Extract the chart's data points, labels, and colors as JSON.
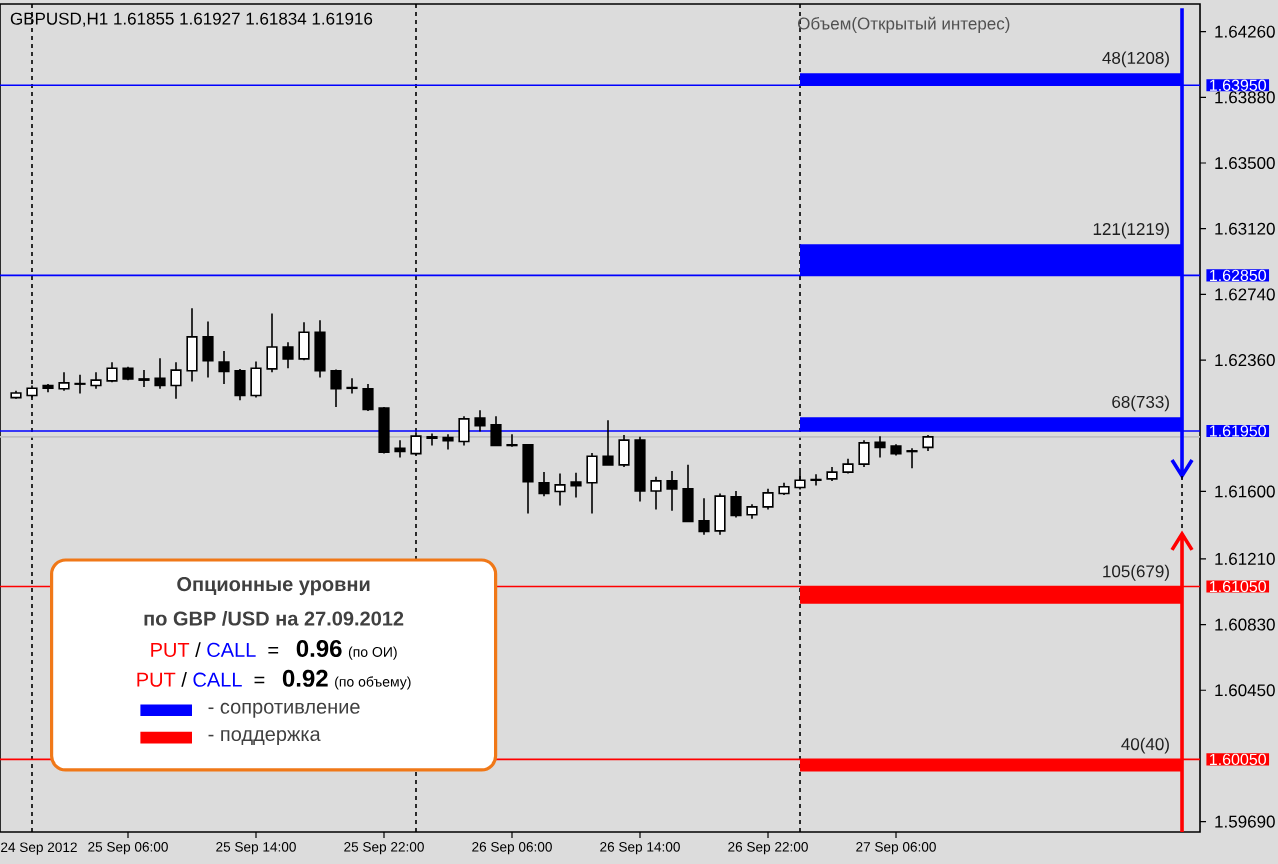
{
  "chart_data": {
    "type": "candlestick",
    "title": "GBPUSD,H1  1.61855 1.61927 1.61834 1.61916",
    "color": "#000000",
    "x": [
      "2012-09-24T23:00",
      "2012-09-25T00:00",
      "2012-09-25T01:00",
      "2012-09-25T02:00",
      "2012-09-25T03:00",
      "2012-09-25T04:00",
      "2012-09-25T05:00",
      "2012-09-25T06:00",
      "2012-09-25T07:00",
      "2012-09-25T08:00",
      "2012-09-25T09:00",
      "2012-09-25T10:00",
      "2012-09-25T11:00",
      "2012-09-25T12:00",
      "2012-09-25T13:00",
      "2012-09-25T14:00",
      "2012-09-25T15:00",
      "2012-09-25T16:00",
      "2012-09-25T17:00",
      "2012-09-25T18:00",
      "2012-09-25T19:00",
      "2012-09-25T20:00",
      "2012-09-25T21:00",
      "2012-09-25T22:00",
      "2012-09-25T23:00",
      "2012-09-26T00:00",
      "2012-09-26T01:00",
      "2012-09-26T02:00",
      "2012-09-26T03:00",
      "2012-09-26T04:00",
      "2012-09-26T05:00",
      "2012-09-26T06:00",
      "2012-09-26T07:00",
      "2012-09-26T08:00",
      "2012-09-26T09:00",
      "2012-09-26T10:00",
      "2012-09-26T11:00",
      "2012-09-26T12:00",
      "2012-09-26T13:00",
      "2012-09-26T14:00",
      "2012-09-26T15:00",
      "2012-09-26T16:00",
      "2012-09-26T17:00",
      "2012-09-26T18:00",
      "2012-09-26T19:00",
      "2012-09-26T20:00",
      "2012-09-26T21:00",
      "2012-09-26T22:00",
      "2012-09-26T23:00",
      "2012-09-27T00:00",
      "2012-09-27T01:00",
      "2012-09-27T02:00",
      "2012-09-27T03:00",
      "2012-09-27T04:00",
      "2012-09-27T05:00",
      "2012-09-27T06:00",
      "2012-09-27T07:00",
      "2012-09-27T08:00"
    ],
    "ohlc": [
      [
        1.62143,
        1.62182,
        1.62136,
        1.6217
      ],
      [
        1.62155,
        1.62213,
        1.62143,
        1.62197
      ],
      [
        1.62213,
        1.62221,
        1.62174,
        1.62197
      ],
      [
        1.62194,
        1.6229,
        1.62182,
        1.62228
      ],
      [
        1.62221,
        1.62275,
        1.62167,
        1.62224
      ],
      [
        1.62213,
        1.6229,
        1.62194,
        1.62244
      ],
      [
        1.6224,
        1.62348,
        1.62232,
        1.62313
      ],
      [
        1.62313,
        1.62321,
        1.62244,
        1.62251
      ],
      [
        1.62251,
        1.62302,
        1.62205,
        1.62244
      ],
      [
        1.62255,
        1.62371,
        1.62194,
        1.62213
      ],
      [
        1.62213,
        1.62348,
        1.62136,
        1.62302
      ],
      [
        1.62298,
        1.6266,
        1.62236,
        1.62494
      ],
      [
        1.62494,
        1.62583,
        1.62259,
        1.62356
      ],
      [
        1.62348,
        1.62413,
        1.62221,
        1.62294
      ],
      [
        1.62298,
        1.62309,
        1.62128,
        1.62155
      ],
      [
        1.62155,
        1.62352,
        1.62143,
        1.62313
      ],
      [
        1.62309,
        1.62629,
        1.6229,
        1.62436
      ],
      [
        1.62436,
        1.62463,
        1.62313,
        1.62367
      ],
      [
        1.62367,
        1.62579,
        1.62359,
        1.62521
      ],
      [
        1.62521,
        1.62591,
        1.62259,
        1.62298
      ],
      [
        1.62298,
        1.62305,
        1.62089,
        1.62194
      ],
      [
        1.62201,
        1.62255,
        1.62167,
        1.62197
      ],
      [
        1.62194,
        1.62221,
        1.62066,
        1.62074
      ],
      [
        1.62082,
        1.62089,
        1.61819,
        1.61827
      ],
      [
        1.6185,
        1.61897,
        1.61796,
        1.61831
      ],
      [
        1.61819,
        1.61943,
        1.61812,
        1.6192
      ],
      [
        1.61916,
        1.61935,
        1.61866,
        1.61908
      ],
      [
        1.61912,
        1.61931,
        1.61843,
        1.61893
      ],
      [
        1.61889,
        1.62035,
        1.61866,
        1.6202
      ],
      [
        1.62024,
        1.6207,
        1.61947,
        1.61981
      ],
      [
        1.61985,
        1.62035,
        1.61866,
        1.61866
      ],
      [
        1.6187,
        1.61931,
        1.61858,
        1.61866
      ],
      [
        1.6187,
        1.61873,
        1.61472,
        1.61657
      ],
      [
        1.6165,
        1.61712,
        1.61573,
        1.61588
      ],
      [
        1.616,
        1.61704,
        1.61519,
        1.61638
      ],
      [
        1.61654,
        1.61708,
        1.61565,
        1.61634
      ],
      [
        1.6165,
        1.61823,
        1.61472,
        1.61804
      ],
      [
        1.61804,
        1.62012,
        1.61754,
        1.61754
      ],
      [
        1.61754,
        1.61927,
        1.61742,
        1.61897
      ],
      [
        1.61897,
        1.61916,
        1.61542,
        1.61603
      ],
      [
        1.61603,
        1.61685,
        1.61496,
        1.61661
      ],
      [
        1.61661,
        1.61719,
        1.61488,
        1.61615
      ],
      [
        1.61615,
        1.61754,
        1.61426,
        1.61426
      ],
      [
        1.6143,
        1.61561,
        1.61349,
        1.61368
      ],
      [
        1.61372,
        1.61588,
        1.61349,
        1.61573
      ],
      [
        1.61569,
        1.61603,
        1.61449,
        1.61461
      ],
      [
        1.61465,
        1.61526,
        1.61442,
        1.61511
      ],
      [
        1.61511,
        1.61615,
        1.61496,
        1.61592
      ],
      [
        1.61588,
        1.6165,
        1.6158,
        1.61627
      ],
      [
        1.61623,
        1.61712,
        1.61611,
        1.61665
      ],
      [
        1.61665,
        1.617,
        1.61634,
        1.61669
      ],
      [
        1.61673,
        1.61742,
        1.61661,
        1.61712
      ],
      [
        1.61712,
        1.61789,
        1.61704,
        1.61758
      ],
      [
        1.61758,
        1.61897,
        1.61742,
        1.61881
      ],
      [
        1.61885,
        1.6192,
        1.61796,
        1.61854
      ],
      [
        1.61862,
        1.61873,
        1.61808,
        1.61819
      ],
      [
        1.61835,
        1.6185,
        1.61735,
        1.61831
      ],
      [
        1.61855,
        1.61927,
        1.61834,
        1.61916
      ]
    ],
    "xlim": [
      "2012-09-24T22:00",
      "2012-09-28T01:00"
    ],
    "xticks": [
      {
        "value": "2012-09-25T06:00",
        "label": "25 Sep 06:00"
      },
      {
        "value": "2012-09-25T14:00",
        "label": "25 Sep 14:00"
      },
      {
        "value": "2012-09-25T22:00",
        "label": "25 Sep 22:00"
      },
      {
        "value": "2012-09-26T06:00",
        "label": "26 Sep 06:00"
      },
      {
        "value": "2012-09-26T14:00",
        "label": "26 Sep 14:00"
      },
      {
        "value": "2012-09-26T22:00",
        "label": "26 Sep 22:00"
      },
      {
        "value": "2012-09-27T06:00",
        "label": "27 Sep 06:00"
      }
    ],
    "ylim": [
      1.5963,
      1.6442
    ],
    "yticks": [
      {
        "value": 1.6426,
        "label": "1.64260"
      },
      {
        "value": 1.6388,
        "label": "1.63880"
      },
      {
        "value": 1.635,
        "label": "1.63500"
      },
      {
        "value": 1.6312,
        "label": "1.63120"
      },
      {
        "value": 1.6274,
        "label": "1.62740"
      },
      {
        "value": 1.6236,
        "label": "1.62360"
      },
      {
        "value": 1.616,
        "label": "1.61600"
      },
      {
        "value": 1.6121,
        "label": "1.61210"
      },
      {
        "value": 1.6083,
        "label": "1.60830"
      },
      {
        "value": 1.6045,
        "label": "1.60450"
      },
      {
        "value": 1.5969,
        "label": "1.59690"
      }
    ],
    "grid": false,
    "ref_lines": [
      {
        "axis": "x",
        "value": "2012-09-25T00:00",
        "color": "#000000",
        "line_style": "dashed"
      },
      {
        "axis": "x",
        "value": "2012-09-26T00:00",
        "color": "#000000",
        "line_style": "dashed"
      },
      {
        "axis": "x",
        "value": "2012-09-27T00:00",
        "color": "#000000",
        "line_style": "dashed"
      },
      {
        "axis": "y",
        "value": 1.61916,
        "color": "#c0c0c0"
      },
      {
        "axis": "y",
        "value": 1.6395,
        "label": "1.63950",
        "color": "#0000ff"
      },
      {
        "axis": "y",
        "value": 1.6285,
        "label": "1.62850",
        "color": "#0000ff"
      },
      {
        "axis": "y",
        "value": 1.6195,
        "label": "1.61950",
        "color": "#0000ff"
      },
      {
        "axis": "y",
        "value": 1.6105,
        "label": "1.61050",
        "color": "#ff0000"
      },
      {
        "axis": "y",
        "value": 1.6005,
        "label": "1.60050",
        "color": "#ff0000"
      }
    ],
    "bands": [
      {
        "axis": "y",
        "from": 1.6395,
        "to": 1.6402,
        "label": "48(1208)",
        "color": "#0000ff"
      },
      {
        "axis": "y",
        "from": 1.6285,
        "to": 1.6303,
        "label": "121(1219)",
        "color": "#0000ff"
      },
      {
        "axis": "y",
        "from": 1.6195,
        "to": 1.6203,
        "label": "68(733)",
        "color": "#0000ff"
      },
      {
        "axis": "y",
        "from": 1.6105,
        "to": 1.6095,
        "label": "105(679)",
        "color": "#ff0000"
      },
      {
        "axis": "y",
        "from": 1.6005,
        "to": 1.5998,
        "label": "40(40)",
        "color": "#ff0000"
      }
    ],
    "annotations": [
      "Объем(Открытый интерес)",
      "Опционные уровни",
      "по GBP /USD на 27.09.2012",
      "PUT",
      "/",
      "CALL",
      "=",
      "0.96",
      "(по ОИ)",
      "PUT",
      "/",
      "CALL",
      "=",
      "0.92",
      "(по объему)",
      "- сопротивление",
      "- поддержка",
      "24 Sep 2012"
    ]
  }
}
